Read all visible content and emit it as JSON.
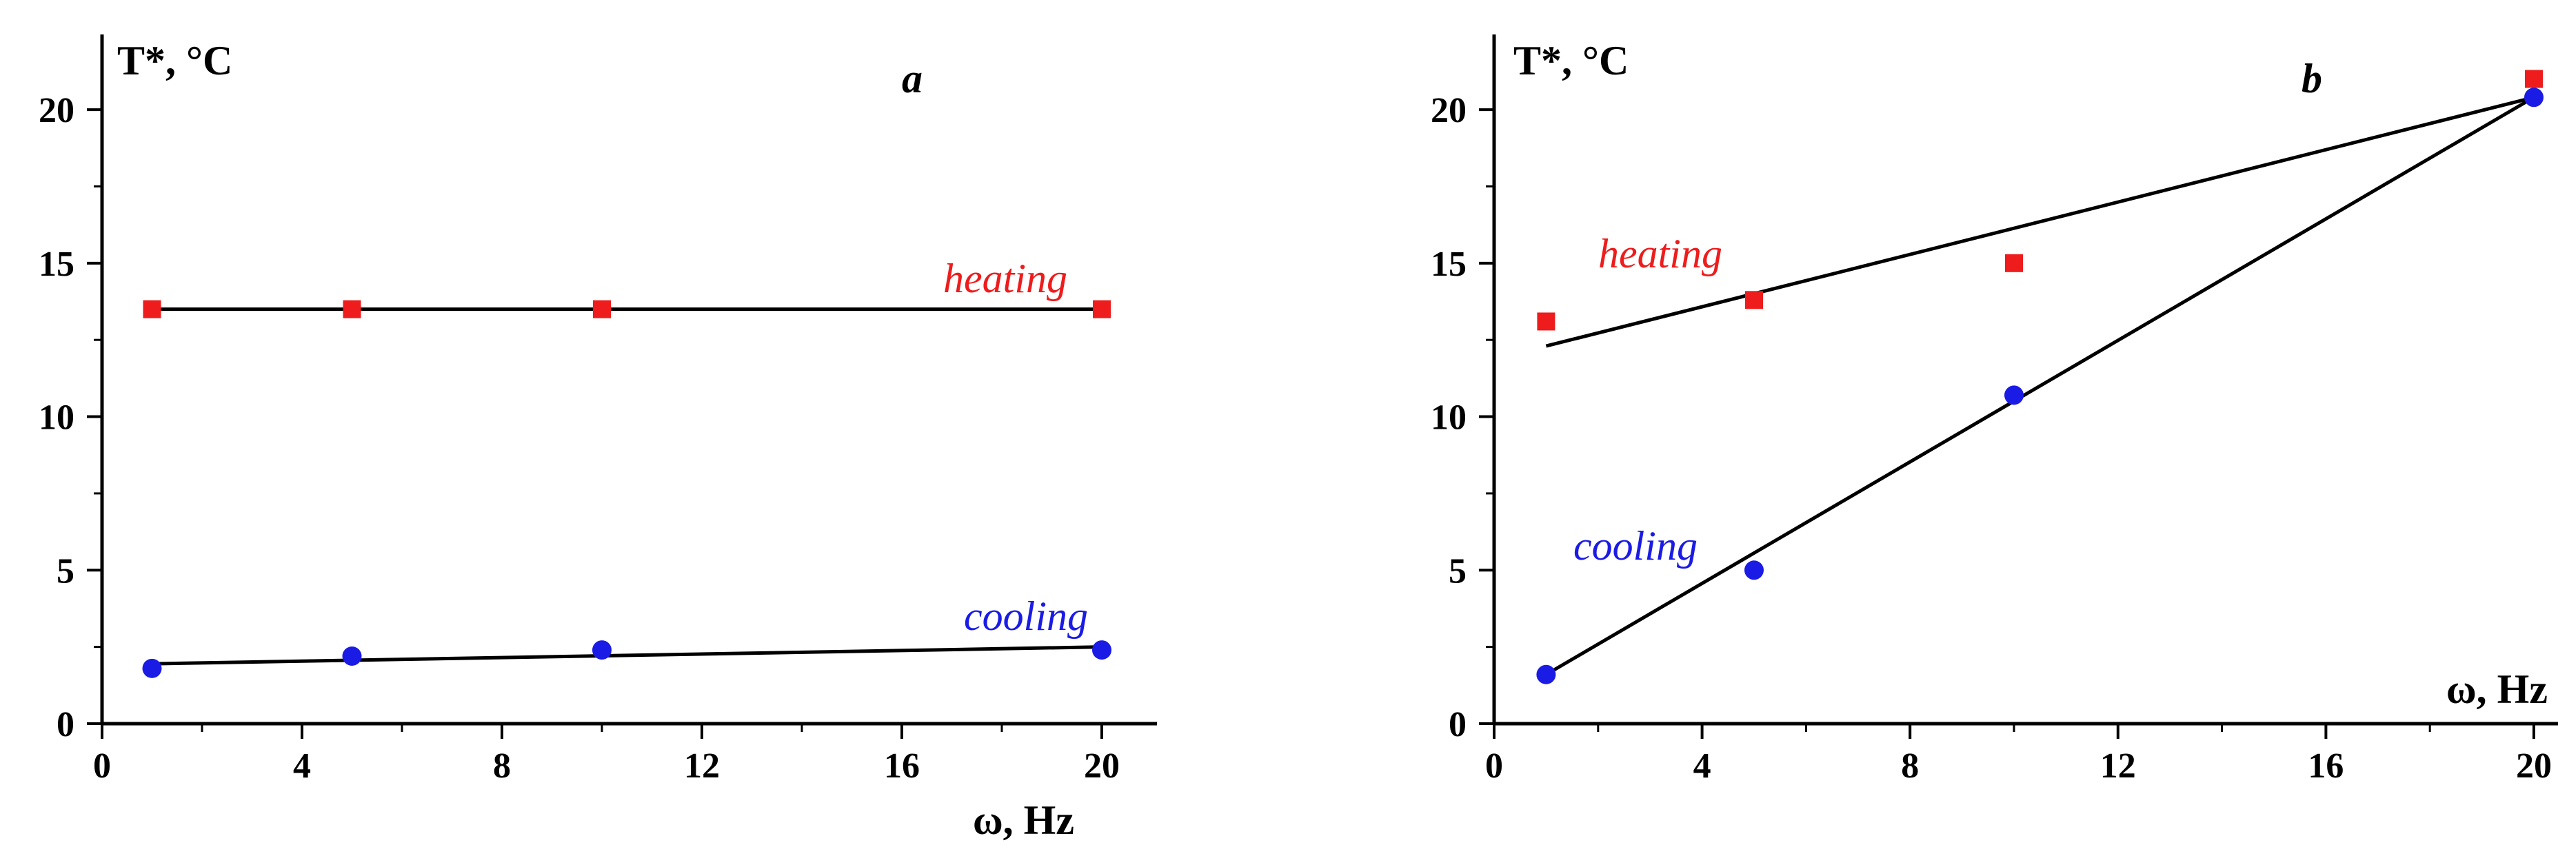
{
  "chart_data": [
    {
      "type": "scatter",
      "panel": "a",
      "xlabel": "ω, Hz",
      "ylabel": "T*, °C",
      "xlim": [
        0,
        20
      ],
      "ylim": [
        0,
        22
      ],
      "xticks": [
        0,
        4,
        8,
        12,
        16,
        20
      ],
      "yticks": [
        0,
        5,
        10,
        15,
        20
      ],
      "series": [
        {
          "name": "heating",
          "color": "#ee1c1c",
          "marker": "square",
          "x": [
            1,
            5,
            10,
            20
          ],
          "y": [
            13.5,
            13.5,
            13.5,
            13.5
          ],
          "fit": {
            "x": [
              1,
              20
            ],
            "y": [
              13.5,
              13.5
            ]
          }
        },
        {
          "name": "cooling",
          "color": "#1b1be6",
          "marker": "circle",
          "x": [
            1,
            5,
            10,
            20
          ],
          "y": [
            1.8,
            2.2,
            2.4,
            2.4
          ],
          "fit": {
            "x": [
              1,
              20
            ],
            "y": [
              1.95,
              2.5
            ]
          }
        }
      ]
    },
    {
      "type": "scatter",
      "panel": "b",
      "xlabel": "ω, Hz",
      "ylabel": "T*, °C",
      "xlim": [
        0,
        20
      ],
      "ylim": [
        0,
        22
      ],
      "xticks": [
        0,
        4,
        8,
        12,
        16,
        20
      ],
      "yticks": [
        0,
        5,
        10,
        15,
        20
      ],
      "series": [
        {
          "name": "heating",
          "color": "#ee1c1c",
          "marker": "square",
          "x": [
            1,
            5,
            10,
            20
          ],
          "y": [
            13.1,
            13.8,
            15.0,
            21.0
          ],
          "fit": {
            "x": [
              1,
              20
            ],
            "y": [
              12.3,
              20.4
            ]
          }
        },
        {
          "name": "cooling",
          "color": "#1b1be6",
          "marker": "circle",
          "x": [
            1,
            5,
            10,
            20
          ],
          "y": [
            1.6,
            5.0,
            10.7,
            20.4
          ],
          "fit": {
            "x": [
              1,
              20
            ],
            "y": [
              1.6,
              20.4
            ]
          }
        }
      ]
    }
  ]
}
